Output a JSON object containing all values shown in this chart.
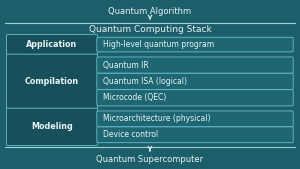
{
  "title": "Quantum Computing Stack",
  "top_label": "Quantum Algorithm",
  "bottom_label": "Quantum Supercomputer",
  "bg_color": "#1c5f6b",
  "dark_box_color": "#174f5a",
  "light_box_color": "#1d6672",
  "border_color": "#6abfcc",
  "text_color": "#e8f4f6",
  "rows": [
    {
      "left_label": "Application",
      "right_items": [
        "High-level quantum program"
      ]
    },
    {
      "left_label": "Compilation",
      "right_items": [
        "Quantum IR",
        "Quantum ISA (logical)",
        "Microcode (QEC)"
      ]
    },
    {
      "left_label": "Modeling",
      "right_items": [
        "Microarchitecture (physical)",
        "Device control"
      ]
    }
  ],
  "line_color": "#a0cfd8",
  "arrow_color": "#ccdddd"
}
